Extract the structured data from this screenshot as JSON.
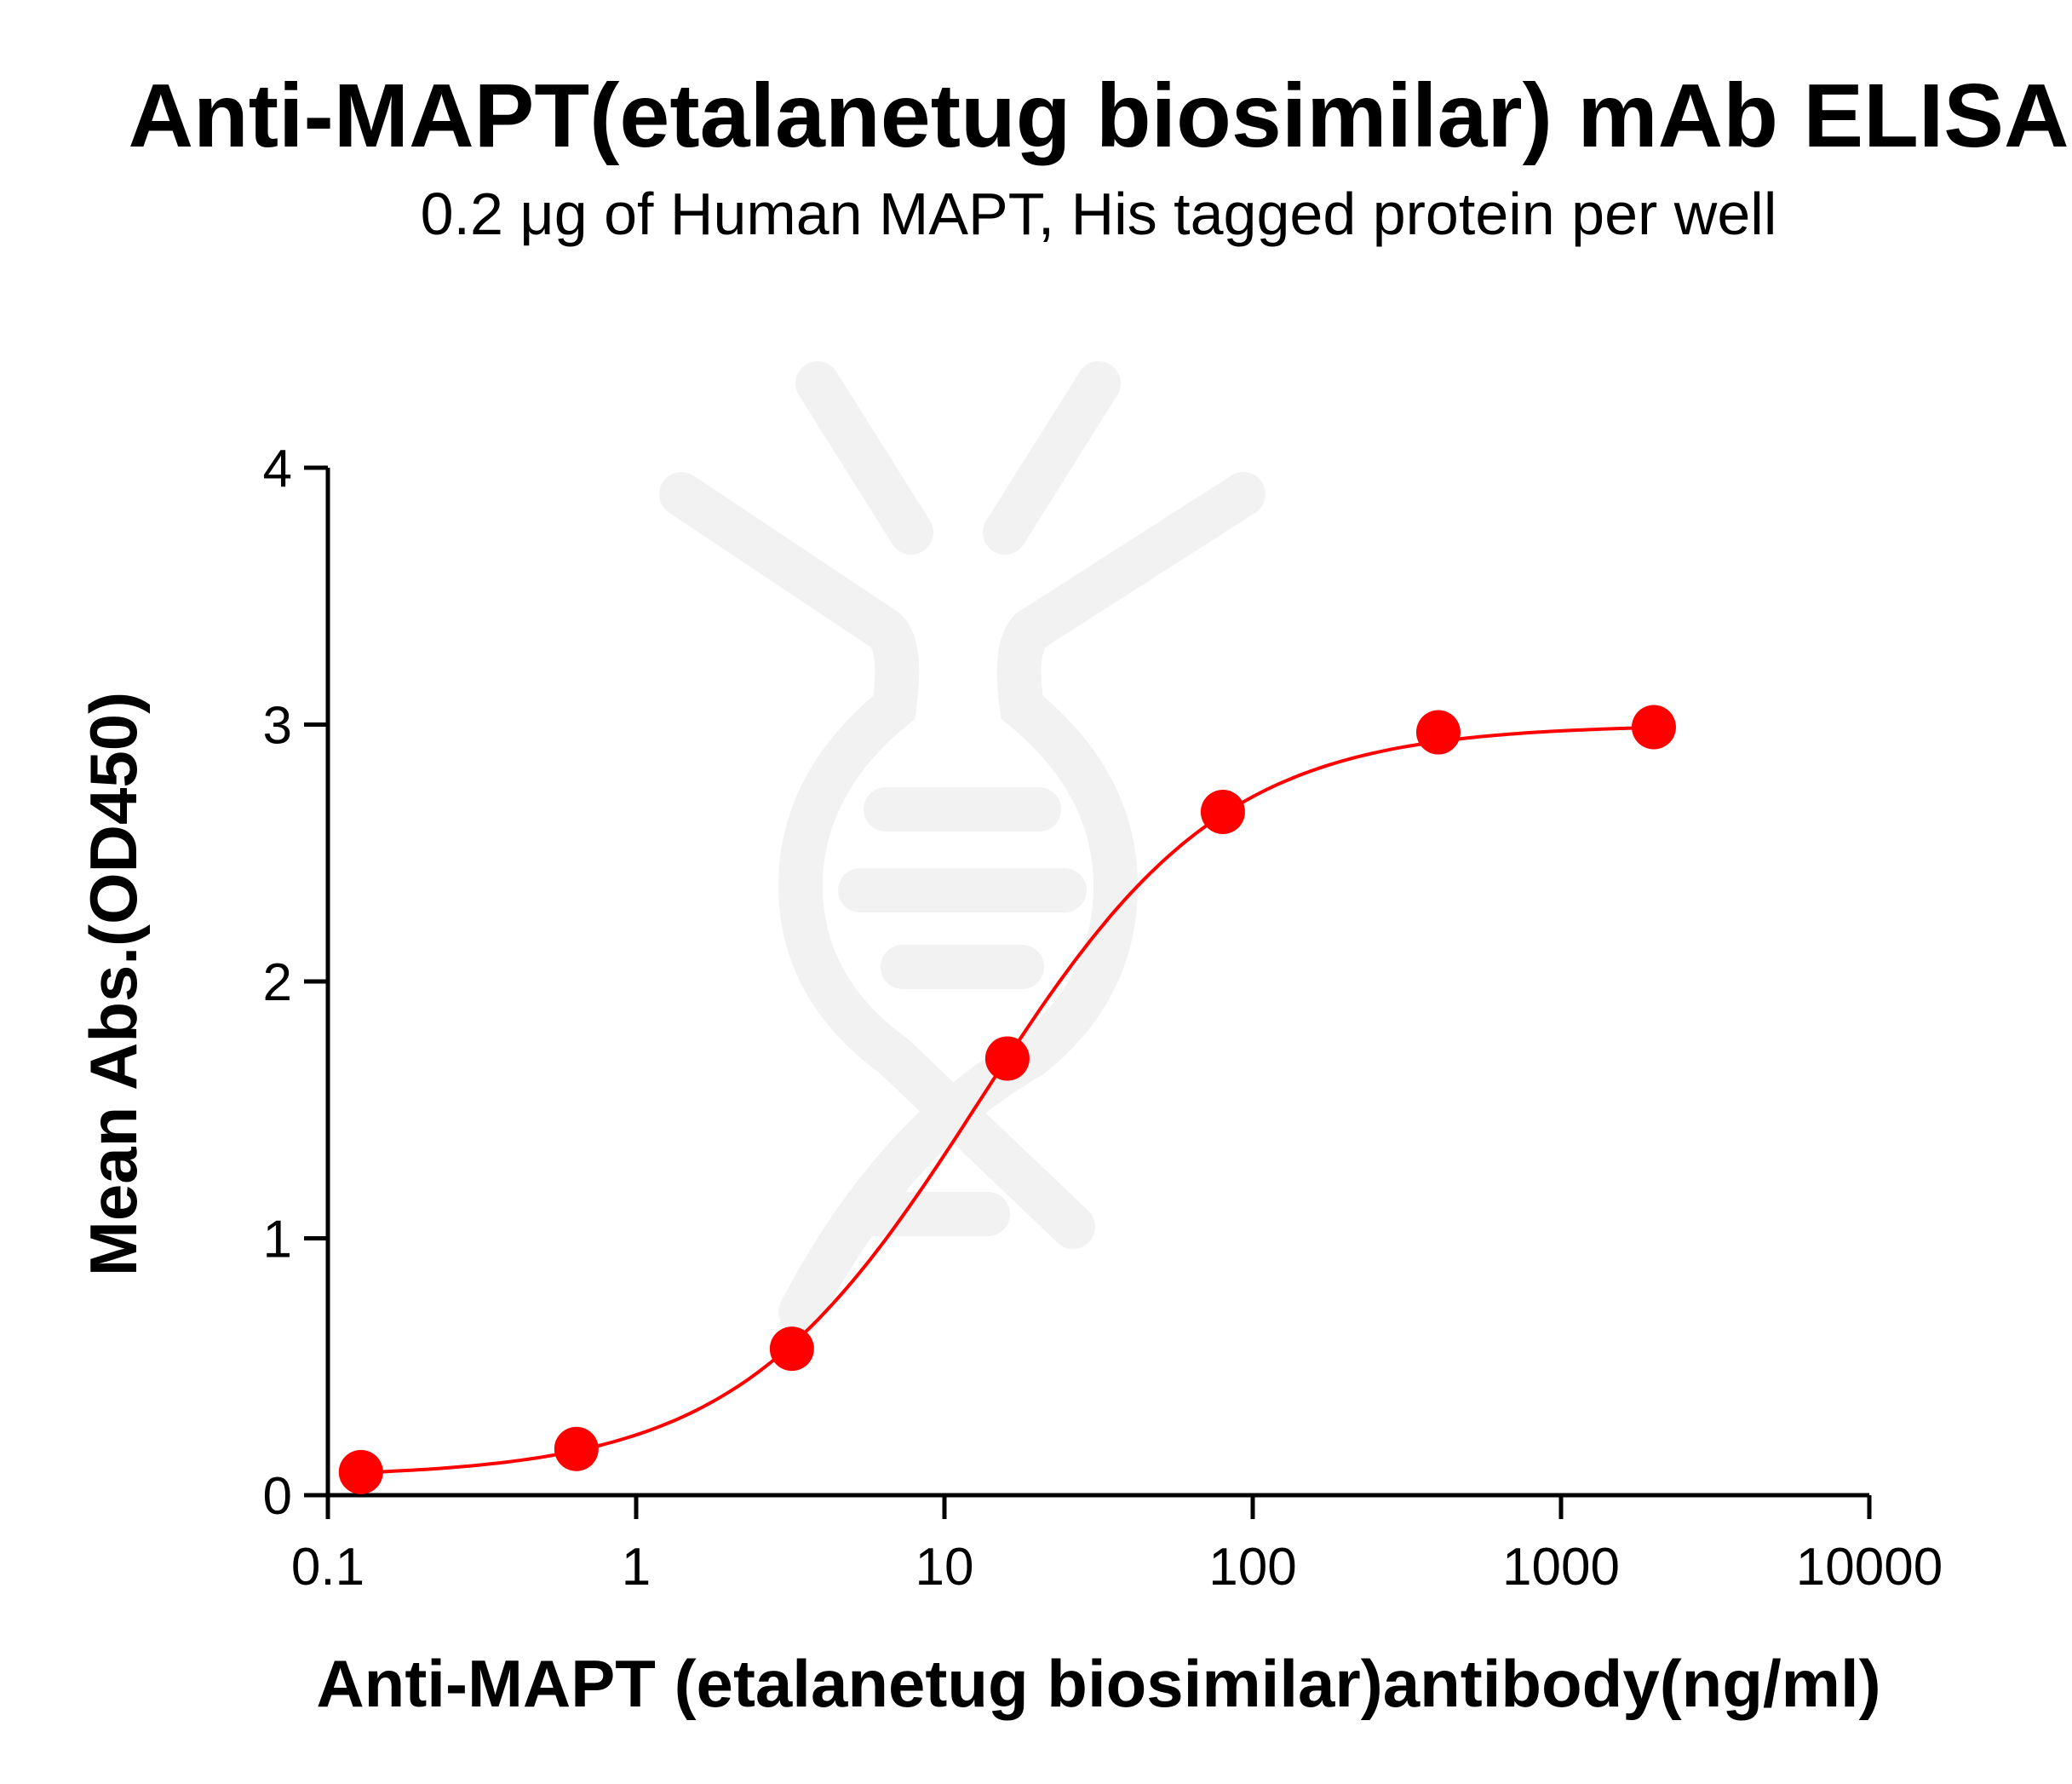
{
  "chart_data": {
    "type": "scatter",
    "title": "Anti-MAPT(etalanetug biosimilar) mAb ELISA",
    "subtitle": "0.2 μg of Human MAPT, His tagged protein per well",
    "xlabel": "Anti-MAPT (etalanetug biosimilar)antibody(ng/ml)",
    "ylabel": "Mean Abs.(OD450)",
    "xscale": "log",
    "xlim": [
      0.1,
      10000
    ],
    "ylim": [
      0,
      4
    ],
    "xticks": [
      "0.1",
      "1",
      "10",
      "100",
      "1000",
      "10000"
    ],
    "yticks": [
      "0",
      "1",
      "2",
      "3",
      "4"
    ],
    "grid": false,
    "series": [
      {
        "x": [
          0.128,
          0.64,
          3.2,
          16,
          80,
          400,
          2000
        ],
        "y": [
          0.09,
          0.18,
          0.57,
          1.7,
          2.66,
          2.97,
          2.99
        ],
        "color": "#ff0000",
        "fit": "sigmoidal curve"
      }
    ]
  }
}
